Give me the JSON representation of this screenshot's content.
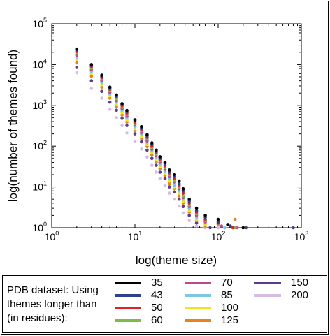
{
  "chart_data": {
    "type": "scatter",
    "xlabel": "log(theme size)",
    "ylabel": "log(number of themes found)",
    "x_scale": "log",
    "y_scale": "log",
    "xlim": [
      1,
      1000
    ],
    "ylim": [
      1,
      100000
    ],
    "x_ticks": [
      {
        "value": 1,
        "base": "10",
        "exp": "0"
      },
      {
        "value": 10,
        "base": "10",
        "exp": "1"
      },
      {
        "value": 100,
        "base": "10",
        "exp": "2"
      },
      {
        "value": 1000,
        "base": "10",
        "exp": "3"
      }
    ],
    "y_ticks": [
      {
        "value": 1,
        "base": "10",
        "exp": "0"
      },
      {
        "value": 10,
        "base": "10",
        "exp": "1"
      },
      {
        "value": 100,
        "base": "10",
        "exp": "2"
      },
      {
        "value": 1000,
        "base": "10",
        "exp": "3"
      },
      {
        "value": 10000,
        "base": "10",
        "exp": "4"
      },
      {
        "value": 100000,
        "base": "10",
        "exp": "5"
      }
    ],
    "legend": {
      "title": "PDB dataset: Using\nthemes longer than\n(in residues):",
      "placement": "bottom"
    },
    "series": [
      {
        "name": "35",
        "color": "#000000",
        "points": [
          [
            2,
            24000
          ],
          [
            3,
            10000
          ],
          [
            4,
            5500
          ],
          [
            5,
            2800
          ],
          [
            6,
            1800
          ],
          [
            7,
            1100
          ],
          [
            8,
            750
          ],
          [
            10,
            440
          ],
          [
            12,
            300
          ],
          [
            14,
            190
          ],
          [
            16,
            120
          ],
          [
            18,
            80
          ],
          [
            20,
            55
          ],
          [
            23,
            40
          ],
          [
            26,
            26
          ],
          [
            30,
            20
          ],
          [
            34,
            14
          ],
          [
            38,
            9
          ],
          [
            45,
            5
          ],
          [
            55,
            3
          ],
          [
            70,
            2
          ],
          [
            100,
            1.6
          ],
          [
            130,
            1.2
          ],
          [
            200,
            1
          ]
        ]
      },
      {
        "name": "43",
        "color": "#2e3f8f",
        "points": [
          [
            2,
            23000
          ],
          [
            3,
            9500
          ],
          [
            4,
            5200
          ],
          [
            5,
            2700
          ],
          [
            6,
            1700
          ],
          [
            7,
            1050
          ],
          [
            8,
            700
          ],
          [
            10,
            420
          ],
          [
            12,
            280
          ],
          [
            14,
            180
          ],
          [
            16,
            110
          ],
          [
            18,
            75
          ],
          [
            20,
            52
          ],
          [
            23,
            37
          ],
          [
            26,
            24
          ],
          [
            30,
            18
          ],
          [
            34,
            12
          ],
          [
            38,
            8
          ],
          [
            45,
            4.5
          ],
          [
            55,
            2.6
          ],
          [
            70,
            1.8
          ],
          [
            100,
            1.4
          ],
          [
            140,
            1.1
          ],
          [
            220,
            1
          ]
        ]
      },
      {
        "name": "50",
        "color": "#e41e26",
        "points": [
          [
            2,
            21000
          ],
          [
            3,
            9000
          ],
          [
            4,
            4800
          ],
          [
            5,
            2500
          ],
          [
            6,
            1600
          ],
          [
            7,
            980
          ],
          [
            8,
            650
          ],
          [
            10,
            390
          ],
          [
            12,
            260
          ],
          [
            14,
            165
          ],
          [
            16,
            100
          ],
          [
            18,
            70
          ],
          [
            20,
            48
          ],
          [
            23,
            33
          ],
          [
            26,
            22
          ],
          [
            30,
            16
          ],
          [
            34,
            11
          ],
          [
            38,
            7
          ],
          [
            45,
            4
          ],
          [
            55,
            2.4
          ],
          [
            70,
            1.6
          ],
          [
            100,
            1.3
          ],
          [
            150,
            1
          ]
        ]
      },
      {
        "name": "60",
        "color": "#7cbc42",
        "points": [
          [
            2,
            19000
          ],
          [
            3,
            8200
          ],
          [
            4,
            4400
          ],
          [
            5,
            2300
          ],
          [
            6,
            1450
          ],
          [
            7,
            900
          ],
          [
            8,
            600
          ],
          [
            10,
            360
          ],
          [
            12,
            240
          ],
          [
            14,
            150
          ],
          [
            16,
            92
          ],
          [
            18,
            64
          ],
          [
            20,
            44
          ],
          [
            23,
            30
          ],
          [
            26,
            20
          ],
          [
            30,
            14
          ],
          [
            34,
            10
          ],
          [
            38,
            6
          ],
          [
            45,
            3.6
          ],
          [
            55,
            2.2
          ],
          [
            70,
            1.5
          ],
          [
            100,
            1.2
          ],
          [
            160,
            1
          ]
        ]
      },
      {
        "name": "70",
        "color": "#c2468e",
        "points": [
          [
            2,
            17000
          ],
          [
            3,
            7500
          ],
          [
            4,
            4000
          ],
          [
            5,
            2100
          ],
          [
            6,
            1300
          ],
          [
            7,
            820
          ],
          [
            8,
            540
          ],
          [
            10,
            330
          ],
          [
            12,
            215
          ],
          [
            14,
            135
          ],
          [
            16,
            84
          ],
          [
            18,
            58
          ],
          [
            20,
            40
          ],
          [
            23,
            27
          ],
          [
            26,
            18
          ],
          [
            30,
            13
          ],
          [
            34,
            9
          ],
          [
            38,
            5.5
          ],
          [
            45,
            3.3
          ],
          [
            55,
            2
          ],
          [
            70,
            1.4
          ],
          [
            110,
            1.1
          ],
          [
            170,
            1
          ]
        ]
      },
      {
        "name": "85",
        "color": "#7cc7e5",
        "points": [
          [
            2,
            15000
          ],
          [
            3,
            6800
          ],
          [
            4,
            3600
          ],
          [
            5,
            1900
          ],
          [
            6,
            1200
          ],
          [
            7,
            740
          ],
          [
            8,
            490
          ],
          [
            10,
            300
          ],
          [
            12,
            195
          ],
          [
            14,
            122
          ],
          [
            16,
            76
          ],
          [
            18,
            52
          ],
          [
            20,
            36
          ],
          [
            23,
            24
          ],
          [
            26,
            16
          ],
          [
            30,
            11
          ],
          [
            34,
            8
          ],
          [
            38,
            5
          ],
          [
            45,
            3
          ],
          [
            55,
            1.8
          ],
          [
            70,
            1.3
          ],
          [
            120,
            1
          ]
        ]
      },
      {
        "name": "100",
        "color": "#f2e514",
        "points": [
          [
            2,
            13000
          ],
          [
            3,
            6000
          ],
          [
            4,
            3200
          ],
          [
            5,
            1700
          ],
          [
            6,
            1050
          ],
          [
            7,
            660
          ],
          [
            8,
            440
          ],
          [
            10,
            270
          ],
          [
            12,
            175
          ],
          [
            14,
            110
          ],
          [
            16,
            68
          ],
          [
            18,
            46
          ],
          [
            20,
            32
          ],
          [
            23,
            21
          ],
          [
            26,
            14
          ],
          [
            30,
            10
          ],
          [
            34,
            7
          ],
          [
            38,
            4.5
          ],
          [
            45,
            2.6
          ],
          [
            55,
            1.6
          ],
          [
            70,
            1.2
          ],
          [
            120,
            1
          ]
        ]
      },
      {
        "name": "125",
        "color": "#e8811f",
        "points": [
          [
            2,
            11000
          ],
          [
            3,
            5200
          ],
          [
            4,
            2800
          ],
          [
            5,
            1500
          ],
          [
            6,
            920
          ],
          [
            7,
            580
          ],
          [
            8,
            390
          ],
          [
            10,
            240
          ],
          [
            12,
            155
          ],
          [
            14,
            98
          ],
          [
            16,
            60
          ],
          [
            18,
            41
          ],
          [
            20,
            28
          ],
          [
            23,
            19
          ],
          [
            26,
            12
          ],
          [
            30,
            9
          ],
          [
            34,
            6
          ],
          [
            38,
            4
          ],
          [
            45,
            2.4
          ],
          [
            55,
            1.5
          ],
          [
            70,
            1.1
          ],
          [
            160,
            1.6
          ],
          [
            200,
            1
          ]
        ]
      },
      {
        "name": "150",
        "color": "#5b3b8c",
        "points": [
          [
            2,
            8500
          ],
          [
            3,
            4000
          ],
          [
            4,
            2200
          ],
          [
            5,
            1200
          ],
          [
            6,
            760
          ],
          [
            7,
            480
          ],
          [
            8,
            320
          ],
          [
            10,
            200
          ],
          [
            12,
            128
          ],
          [
            14,
            80
          ],
          [
            16,
            50
          ],
          [
            18,
            34
          ],
          [
            20,
            23
          ],
          [
            23,
            16
          ],
          [
            26,
            10
          ],
          [
            30,
            7.5
          ],
          [
            34,
            5
          ],
          [
            38,
            3.3
          ],
          [
            45,
            2
          ],
          [
            55,
            1.3
          ],
          [
            80,
            1
          ],
          [
            800,
            1
          ]
        ]
      },
      {
        "name": "200",
        "color": "#d7bde3",
        "points": [
          [
            2,
            6300
          ],
          [
            3,
            2600
          ],
          [
            4,
            1500
          ],
          [
            5,
            800
          ],
          [
            6,
            500
          ],
          [
            7,
            320
          ],
          [
            8,
            210
          ],
          [
            10,
            130
          ],
          [
            12,
            85
          ],
          [
            14,
            54
          ],
          [
            16,
            34
          ],
          [
            18,
            23
          ],
          [
            20,
            16
          ],
          [
            23,
            11
          ],
          [
            26,
            7
          ],
          [
            30,
            5
          ],
          [
            34,
            3.4
          ],
          [
            38,
            2.3
          ],
          [
            45,
            1.5
          ],
          [
            55,
            1.1
          ],
          [
            70,
            1
          ],
          [
            100,
            1
          ]
        ]
      }
    ]
  }
}
